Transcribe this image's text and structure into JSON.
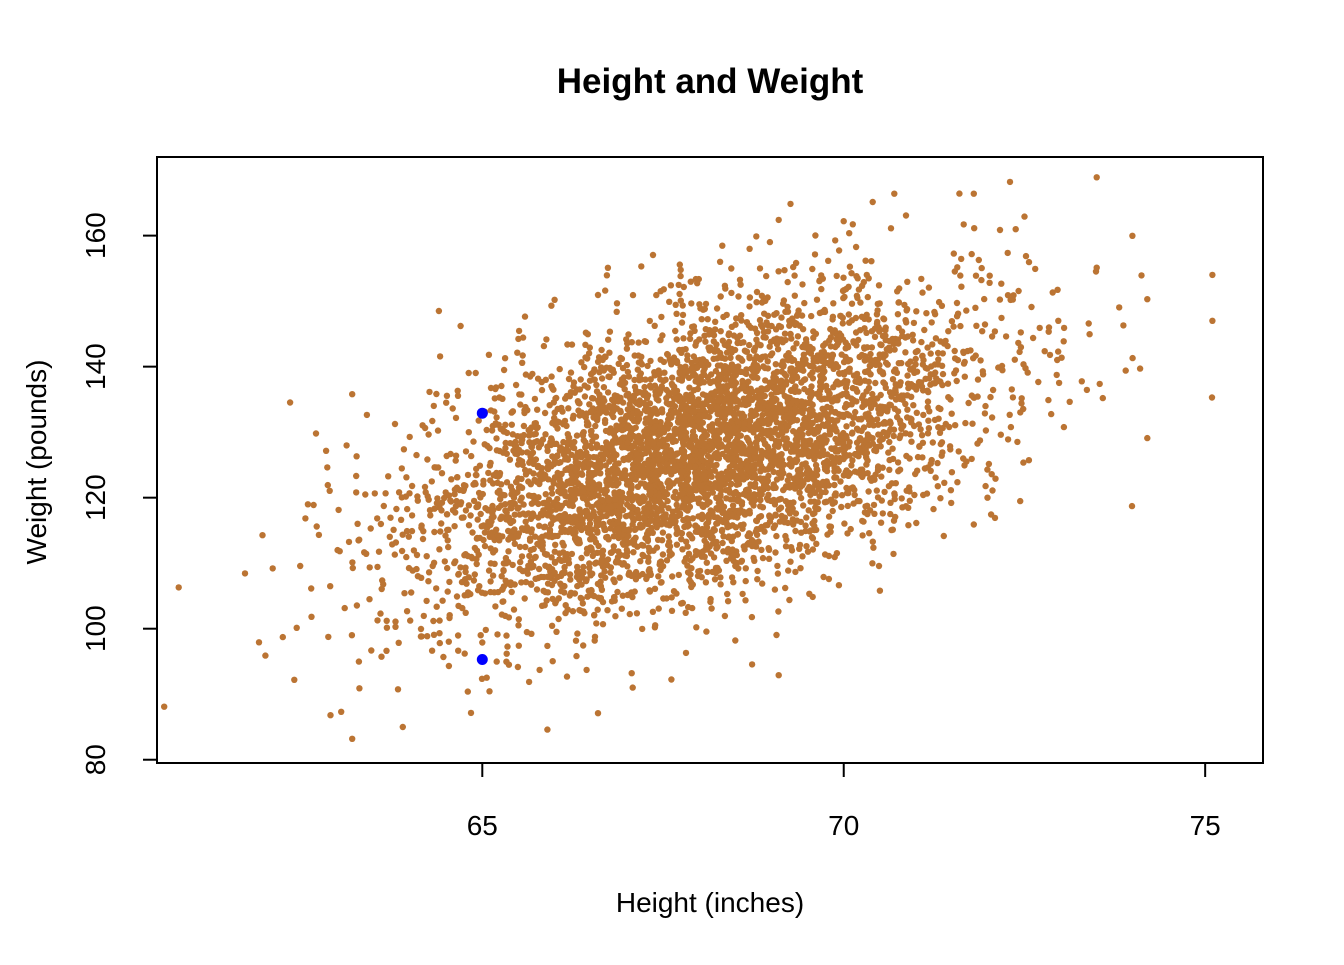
{
  "chart_data": {
    "type": "scatter",
    "title": "Height and Weight",
    "xlabel": "Height (inches)",
    "ylabel": "Weight (pounds)",
    "xlim": [
      60.5,
      75.8
    ],
    "ylim": [
      79.5,
      172
    ],
    "x_ticks": [
      65,
      70,
      75
    ],
    "x_tick_labels": [
      "65",
      "70",
      "75"
    ],
    "y_ticks": [
      80,
      100,
      120,
      140,
      160
    ],
    "y_tick_labels": [
      "80",
      "100",
      "120",
      "140",
      "160"
    ],
    "grid": false,
    "legend": "none",
    "colors": {
      "points": "#bb7433",
      "highlight": "#0000ff",
      "axes": "#000000",
      "background": "#ffffff"
    },
    "series": [
      {
        "point_count": 5000,
        "distribution": {
          "mean_x": 68.0,
          "mean_y": 127.0,
          "sd_x": 1.9,
          "sd_y": 11.8,
          "correlation": 0.5
        },
        "outliers": [
          {
            "x": 60.6,
            "y": 88.1
          },
          {
            "x": 60.8,
            "y": 106.3
          },
          {
            "x": 62.0,
            "y": 95.9
          },
          {
            "x": 62.1,
            "y": 109.2
          },
          {
            "x": 62.4,
            "y": 92.2
          },
          {
            "x": 62.9,
            "y": 86.8
          },
          {
            "x": 63.2,
            "y": 83.2
          },
          {
            "x": 63.3,
            "y": 90.9
          },
          {
            "x": 63.9,
            "y": 85.0
          },
          {
            "x": 64.8,
            "y": 90.4
          },
          {
            "x": 65.9,
            "y": 84.6
          },
          {
            "x": 66.6,
            "y": 87.1
          },
          {
            "x": 63.2,
            "y": 135.8
          },
          {
            "x": 62.7,
            "y": 129.8
          },
          {
            "x": 64.4,
            "y": 148.5
          },
          {
            "x": 64.7,
            "y": 146.2
          },
          {
            "x": 66.0,
            "y": 150.2
          },
          {
            "x": 66.7,
            "y": 151.6
          },
          {
            "x": 69.1,
            "y": 92.9
          },
          {
            "x": 70.5,
            "y": 105.8
          },
          {
            "x": 68.5,
            "y": 98.2
          },
          {
            "x": 70.7,
            "y": 166.4
          },
          {
            "x": 71.8,
            "y": 166.4
          },
          {
            "x": 72.3,
            "y": 168.2
          },
          {
            "x": 73.5,
            "y": 168.9
          },
          {
            "x": 75.1,
            "y": 154.0
          },
          {
            "x": 75.1,
            "y": 147.0
          },
          {
            "x": 74.2,
            "y": 129.1
          },
          {
            "x": 73.9,
            "y": 139.4
          },
          {
            "x": 74.2,
            "y": 150.3
          },
          {
            "x": 74.1,
            "y": 139.7
          },
          {
            "x": 73.5,
            "y": 155.1
          },
          {
            "x": 72.5,
            "y": 162.9
          },
          {
            "x": 70.0,
            "y": 162.2
          },
          {
            "x": 69.1,
            "y": 162.4
          },
          {
            "x": 72.1,
            "y": 122.9
          },
          {
            "x": 71.8,
            "y": 115.9
          },
          {
            "x": 67.2,
            "y": 155.3
          }
        ]
      }
    ],
    "highlighted_points": [
      {
        "x": 65.0,
        "y": 132.9
      },
      {
        "x": 65.0,
        "y": 95.3
      }
    ]
  }
}
